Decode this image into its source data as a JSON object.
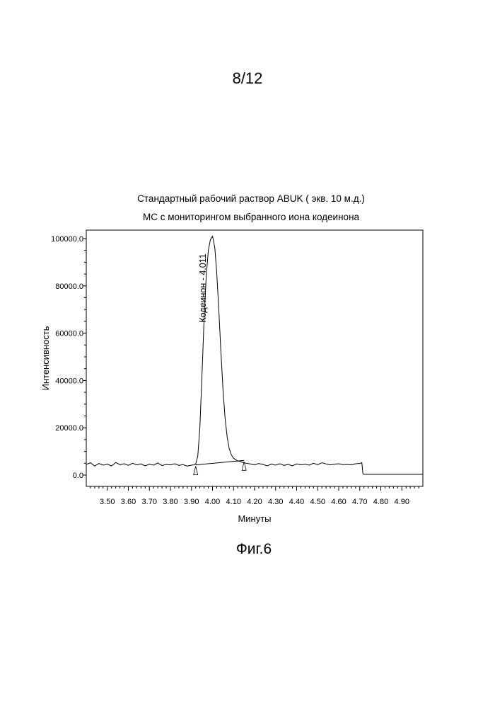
{
  "page_number": "8/12",
  "figure_label": "Фиг.6",
  "chart_data": {
    "type": "line",
    "title": "Стандартный рабочий раствор ABUK  ( экв. 10 м.д.)",
    "subtitle": "МС с мониторингом выбранного иона кодеинона",
    "xlabel": "Минуты",
    "ylabel": "Интенсивность",
    "xlim": [
      3.4,
      5.0
    ],
    "ylim": [
      -5000,
      103000
    ],
    "x_ticks": [
      "3.50",
      "3.60",
      "3.70",
      "3.80",
      "3.90",
      "4.00",
      "4.10",
      "4.20",
      "4.30",
      "4.40",
      "4.50",
      "4.60",
      "4.70",
      "4.80",
      "4.90"
    ],
    "y_ticks": [
      "0.0",
      "20000.0",
      "40000.0",
      "60000.0",
      "80000.0",
      "100000.0"
    ],
    "grid": false,
    "peak": {
      "label": "Кодеинон - 4.011",
      "retention_time": 4.011,
      "height": 101000,
      "start": 3.92,
      "end": 4.15
    },
    "series": [
      {
        "x": [
          3.4,
          3.42,
          3.44,
          3.46,
          3.48,
          3.5,
          3.52,
          3.54,
          3.56,
          3.58,
          3.6,
          3.62,
          3.64,
          3.66,
          3.68,
          3.7,
          3.72,
          3.74,
          3.76,
          3.78,
          3.8,
          3.82,
          3.84,
          3.86,
          3.88,
          3.9,
          3.91,
          3.92,
          3.93,
          3.94,
          3.95,
          3.96,
          3.97,
          3.98,
          3.99,
          4.0,
          4.005,
          4.011,
          4.02,
          4.03,
          4.04,
          4.05,
          4.06,
          4.07,
          4.08,
          4.09,
          4.1,
          4.11,
          4.12,
          4.13,
          4.14,
          4.15,
          4.16,
          4.18,
          4.2,
          4.22,
          4.24,
          4.26,
          4.28,
          4.3,
          4.32,
          4.34,
          4.36,
          4.38,
          4.4,
          4.42,
          4.44,
          4.46,
          4.48,
          4.5,
          4.52,
          4.54,
          4.56,
          4.58,
          4.6,
          4.62,
          4.64,
          4.66,
          4.68,
          4.7,
          4.71,
          4.715,
          4.72,
          4.8,
          4.9,
          5.0
        ],
        "y": [
          4500,
          5200,
          3800,
          4900,
          4200,
          4600,
          3900,
          5300,
          4400,
          4800,
          4100,
          5000,
          4300,
          4700,
          3900,
          4600,
          4200,
          5100,
          4000,
          4500,
          4300,
          4800,
          4100,
          4400,
          3800,
          4200,
          4300,
          4600,
          8000,
          20000,
          42000,
          66000,
          84000,
          95000,
          99500,
          101000,
          99000,
          96000,
          86000,
          70000,
          52000,
          36000,
          24000,
          16000,
          11000,
          8500,
          7200,
          6500,
          6000,
          5800,
          5500,
          5200,
          5000,
          4700,
          4300,
          4900,
          4500,
          3900,
          4600,
          4200,
          4800,
          4100,
          4500,
          3900,
          4700,
          4300,
          4600,
          4200,
          5000,
          4400,
          5200,
          4700,
          4300,
          4600,
          4800,
          4400,
          4500,
          4300,
          4800,
          4900,
          5200,
          600,
          300,
          300,
          300,
          300
        ]
      }
    ],
    "baseline": {
      "x": [
        3.92,
        4.15
      ],
      "y": [
        4300,
        6200
      ]
    },
    "annotations": [
      "Кодеинон - 4.011"
    ]
  }
}
